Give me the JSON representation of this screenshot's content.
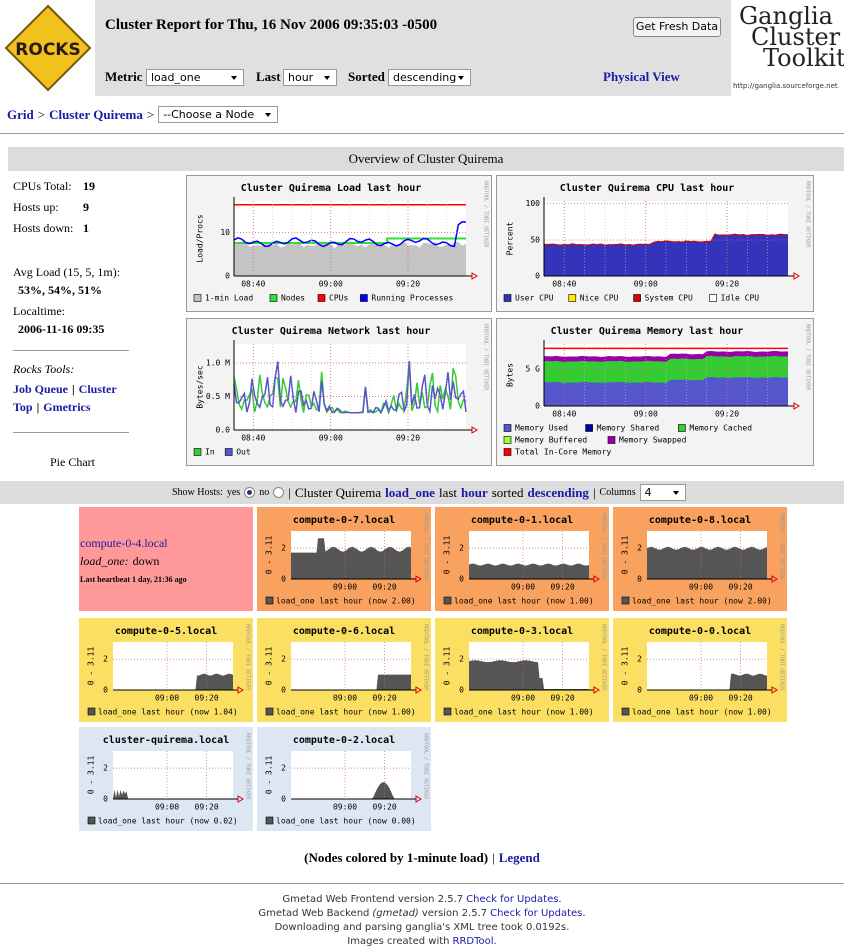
{
  "header": {
    "title": "Cluster Report for Thu, 16 Nov 2006 09:35:03 -0500",
    "button": "Get Fresh Data",
    "metric_label": "Metric",
    "metric": "load_one",
    "last_label": "Last",
    "last": "hour",
    "sorted_label": "Sorted",
    "sorted": "descending",
    "physical_view": "Physical View",
    "logo_left": "ROCKS",
    "logo_right": [
      "Ganglia",
      "Cluster",
      "Toolkit"
    ],
    "logo_url": "http://ganglia.sourceforge.net"
  },
  "breadcrumb": {
    "grid": "Grid",
    "sep": ">",
    "cluster": "Cluster Quirema",
    "node_select": "--Choose a Node"
  },
  "overview": {
    "title": "Overview of Cluster Quirema",
    "stats": [
      {
        "label": "CPUs Total:",
        "value": "19"
      },
      {
        "label": "Hosts up:",
        "value": "9"
      },
      {
        "label": "Hosts down:",
        "value": "1"
      }
    ],
    "avg_load_label": "Avg Load (15, 5, 1m):",
    "avg_load": "53%, 54%, 51%",
    "localtime_label": "Localtime:",
    "localtime": "2006-11-16 09:35",
    "tools_label": "Rocks Tools:",
    "tools": [
      "Job Queue",
      "Cluster Top",
      "Gmetrics"
    ],
    "tools_sep": "|",
    "pie": "Pie Chart"
  },
  "graphs": [
    {
      "title": "Cluster Quirema Load last hour",
      "ylabel": "Load/Procs",
      "yticks": [
        "10",
        "0"
      ],
      "xticks": [
        "08:40",
        "09:00",
        "09:20"
      ],
      "legend": [
        {
          "name": "1-min Load",
          "color": "#c4c4c4"
        },
        {
          "name": "Nodes",
          "color": "#33dd33"
        },
        {
          "name": "CPUs",
          "color": "#ff0000"
        },
        {
          "name": "Running Processes",
          "color": "#0000ff"
        }
      ]
    },
    {
      "title": "Cluster Quirema CPU last hour",
      "ylabel": "Percent",
      "yticks": [
        "100",
        "50",
        "0"
      ],
      "xticks": [
        "08:40",
        "09:00",
        "09:20"
      ],
      "legend": [
        {
          "name": "User CPU",
          "color": "#3333bb"
        },
        {
          "name": "Nice CPU",
          "color": "#ffea00"
        },
        {
          "name": "System CPU",
          "color": "#dd0000"
        },
        {
          "name": "Idle CPU",
          "color": "#ffffff"
        }
      ]
    },
    {
      "title": "Cluster Quirema Network last hour",
      "ylabel": "Bytes/sec",
      "yticks": [
        "1.0 M",
        "0.5 M",
        "0.0"
      ],
      "xticks": [
        "08:40",
        "09:00",
        "09:20"
      ],
      "legend": [
        {
          "name": "In",
          "color": "#33cc33"
        },
        {
          "name": "Out",
          "color": "#5555cc"
        }
      ]
    },
    {
      "title": "Cluster Quirema Memory last hour",
      "ylabel": "Bytes",
      "yticks": [
        "5 G",
        "0"
      ],
      "xticks": [
        "08:40",
        "09:00",
        "09:20"
      ],
      "legend": [
        {
          "name": "Memory Used",
          "color": "#5555cc"
        },
        {
          "name": "Memory Shared",
          "color": "#0000aa"
        },
        {
          "name": "Memory Cached",
          "color": "#33cc33"
        },
        {
          "name": "Memory Buffered",
          "color": "#99ff33"
        },
        {
          "name": "Memory Swapped",
          "color": "#9900aa"
        },
        {
          "name": "Total In-Core Memory",
          "color": "#ff0000"
        }
      ]
    }
  ],
  "graph_side": "RRDTOOL / TOBI OETIKER",
  "hosts_bar": {
    "show": "Show Hosts:",
    "yes": "yes",
    "no": "no",
    "sep": "|",
    "cluster": "Cluster Quirema",
    "metric": "load_one",
    "last": "last",
    "range": "hour",
    "sorted": "sorted",
    "order": "descending",
    "columns": "Columns",
    "columns_value": "4"
  },
  "dead_host": {
    "name": "compute-0-4.local",
    "metric": "load_one:",
    "status": "down",
    "heartbeat": "Last heartbeat 1 day, 21:36 ago",
    "color": "#ff9999"
  },
  "host_graph": {
    "yrange": "0 - 3.11",
    "yticks": [
      "2",
      "0"
    ],
    "xticks": [
      "09:00",
      "09:20"
    ]
  },
  "hosts": [
    {
      "name": "compute-0-7.local",
      "legend": "load_one last hour (now 2.00)",
      "color": "#f9a15e"
    },
    {
      "name": "compute-0-1.local",
      "legend": "load_one last hour (now 1.00)",
      "color": "#f9a15e"
    },
    {
      "name": "compute-0-8.local",
      "legend": "load_one last hour (now 2.00)",
      "color": "#f9a15e"
    },
    {
      "name": "compute-0-5.local",
      "legend": "load_one last hour (now 1.04)",
      "color": "#fbdf62"
    },
    {
      "name": "compute-0-6.local",
      "legend": "load_one last hour (now 1.00)",
      "color": "#fbdf62"
    },
    {
      "name": "compute-0-3.local",
      "legend": "load_one last hour (now 1.00)",
      "color": "#fbdf62"
    },
    {
      "name": "compute-0-0.local",
      "legend": "load_one last hour (now 1.00)",
      "color": "#fbdf62"
    },
    {
      "name": "cluster-quirema.local",
      "legend": "load_one last hour (now 0.02)",
      "color": "#dde7f4"
    },
    {
      "name": "compute-0-2.local",
      "legend": "load_one last hour (now 0.00)",
      "color": "#dde7f4"
    }
  ],
  "nodes_note": {
    "text": "(Nodes colored by 1-minute load)",
    "sep": "|",
    "link": "Legend"
  },
  "footer": [
    [
      {
        "text": "Gmetad Web Frontend version 2.5.7"
      },
      {
        "link": "Check for Updates."
      }
    ],
    [
      {
        "text": "Gmetad Web Backend"
      },
      {
        "italic": "(gmetad)"
      },
      {
        "text": "version 2.5.7"
      },
      {
        "link": "Check for Updates."
      }
    ],
    [
      {
        "text": "Downloading and parsing ganglia's XML tree took 0.0192s."
      }
    ],
    [
      {
        "text": "Images created with"
      },
      {
        "link": "RRDTool."
      }
    ]
  ]
}
